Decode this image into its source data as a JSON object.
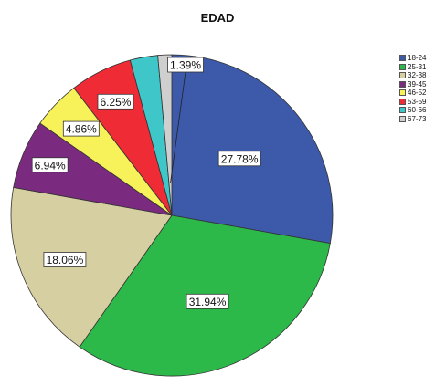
{
  "chart_data": {
    "type": "pie",
    "title": "EDAD",
    "categories": [
      "18-24",
      "25-31",
      "32-38",
      "39-45",
      "46-52",
      "53-59",
      "60-66",
      "67-73"
    ],
    "values": [
      27.78,
      31.94,
      18.06,
      6.94,
      4.86,
      6.25,
      2.78,
      1.39
    ],
    "data_labels": [
      "27.78%",
      "31.94%",
      "18.06%",
      "6.94%",
      "4.86%",
      "6.25%",
      "",
      "1.39%"
    ],
    "colors": [
      "#3c59aa",
      "#2db84a",
      "#d6cfa2",
      "#7a2a7f",
      "#f7f25a",
      "#ef2b36",
      "#3ec6c8",
      "#cfcfcf"
    ],
    "legend_position": "right",
    "start_angle": "12 o'clock",
    "direction": "clockwise"
  }
}
